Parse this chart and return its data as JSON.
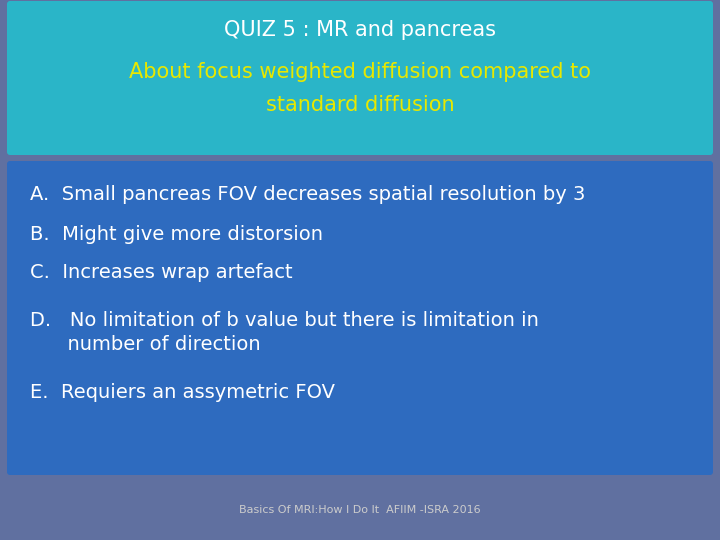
{
  "title_line1": "QUIZ 5 : MR and pancreas",
  "title_line2": "About focus weighted diffusion compared to",
  "title_line3": "standard diffusion",
  "title_color": "#ffffff",
  "subtitle_color": "#e8e800",
  "header_bg_color": "#2ab5c8",
  "body_bg_color": "#2e6bbf",
  "outer_bg_color": "#6070a0",
  "items_A": "A.  Small pancreas FOV decreases spatial resolution by 3",
  "items_B": "B.  Might give more distorsion",
  "items_C": "C.  Increases wrap artefact",
  "items_D1": "D.   No limitation of b value but there is limitation in",
  "items_D2": "      number of direction",
  "items_E": "E.  Requiers an assymetric FOV",
  "item_color": "#ffffff",
  "footer_text": "Basics Of MRI:How I Do It  AFIIM -ISRA 2016",
  "footer_color": "#cccccc",
  "title_fontsize": 15,
  "item_fontsize": 14
}
